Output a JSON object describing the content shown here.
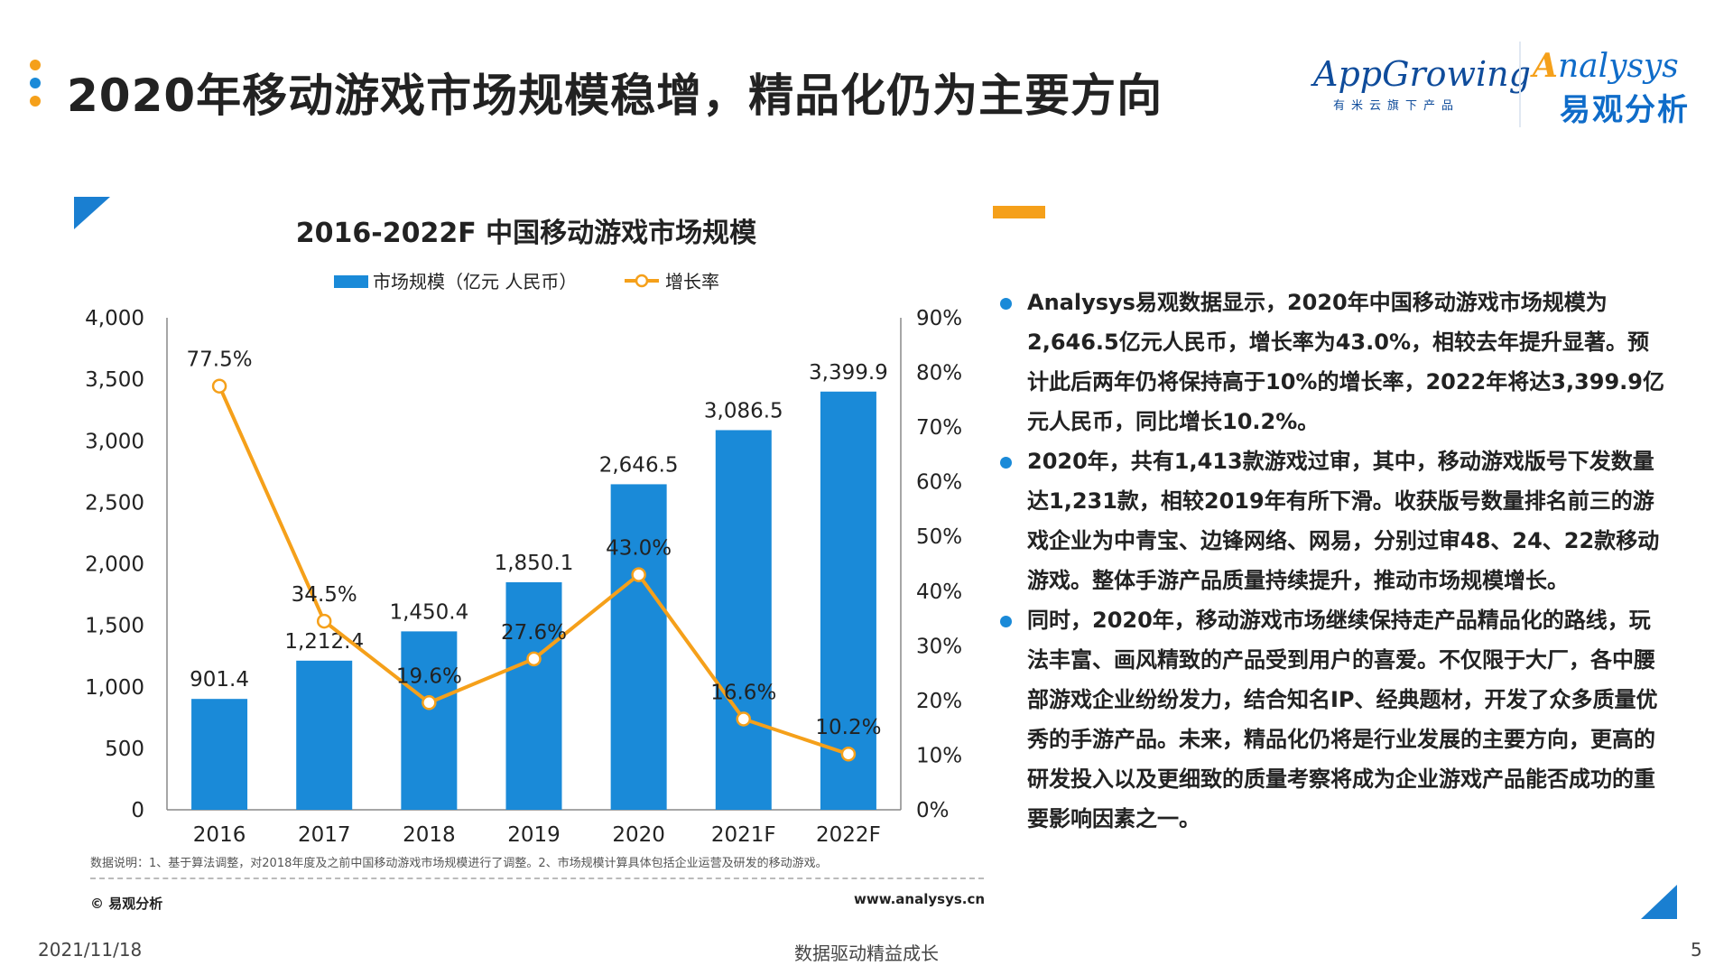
{
  "header": {
    "title": "2020年移动游戏市场规模稳增，精品化仍为主要方向",
    "dot_colors": [
      "#f5a01a",
      "#1a8ad8",
      "#f5a01a"
    ]
  },
  "logos": {
    "appgrowing": {
      "name": "AppGrowing",
      "sub": "有米云旗下产品"
    },
    "analysys": {
      "name_a": "A",
      "name_rest": "nalysys",
      "sub": "易观分析"
    }
  },
  "chart_data": {
    "type": "bar",
    "title": "2016-2022F 中国移动游戏市场规模",
    "categories": [
      "2016",
      "2017",
      "2018",
      "2019",
      "2020",
      "2021F",
      "2022F"
    ],
    "series": [
      {
        "name": "市场规模（亿元 人民币）",
        "type": "bar",
        "axis": "left",
        "color": "#1a8ad8",
        "values": [
          901.4,
          1212.4,
          1450.4,
          1850.1,
          2646.5,
          3086.5,
          3399.9
        ],
        "labels": [
          "901.4",
          "1,212.4",
          "1,450.4",
          "1,850.1",
          "2,646.5",
          "3,086.5",
          "3,399.9"
        ]
      },
      {
        "name": "增长率",
        "type": "line",
        "axis": "right",
        "color": "#f5a01a",
        "values": [
          77.5,
          34.5,
          19.6,
          27.6,
          43.0,
          16.6,
          10.2
        ],
        "labels": [
          "77.5%",
          "34.5%",
          "19.6%",
          "27.6%",
          "43.0%",
          "16.6%",
          "10.2%"
        ]
      }
    ],
    "y_left": {
      "min": 0,
      "max": 4000,
      "ticks": [
        "0",
        "500",
        "1,000",
        "1,500",
        "2,000",
        "2,500",
        "3,000",
        "3,500",
        "4,000"
      ]
    },
    "y_right": {
      "min": 0,
      "max": 90,
      "ticks": [
        "0%",
        "10%",
        "20%",
        "30%",
        "40%",
        "50%",
        "60%",
        "70%",
        "80%",
        "90%"
      ]
    },
    "legend": "top-center",
    "grid": false
  },
  "chart_note": "数据说明：1、基于算法调整，对2018年度及之前中国移动游戏市场规模进行了调整。2、市场规模计算具体包括企业运营及研发的移动游戏。",
  "copyright": "© 易观分析",
  "website": "www.analysys.cn",
  "bullets": [
    "Analysys易观数据显示，2020年中国移动游戏市场规模为2,646.5亿元人民币，增长率为43.0%，相较去年提升显著。预计此后两年仍将保持高于10%的增长率，2022年将达3,399.9亿元人民币，同比增长10.2%。",
    "2020年，共有1,413款游戏过审，其中，移动游戏版号下发数量达1,231款，相较2019年有所下滑。收获版号数量排名前三的游戏企业为中青宝、边锋网络、网易，分别过审48、24、22款移动游戏。整体手游产品质量持续提升，推动市场规模增长。",
    "同时，2020年，移动游戏市场继续保持走产品精品化的路线，玩法丰富、画风精致的产品受到用户的喜爱。不仅限于大厂，各中腰部游戏企业纷纷发力，结合知名IP、经典题材，开发了众多质量优秀的手游产品。未来，精品化仍将是行业发展的主要方向，更高的研发投入以及更细致的质量考察将成为企业游戏产品能否成功的重要影响因素之一。"
  ],
  "footer": {
    "date": "2021/11/18",
    "slogan": "数据驱动精益成长",
    "page": "5"
  }
}
